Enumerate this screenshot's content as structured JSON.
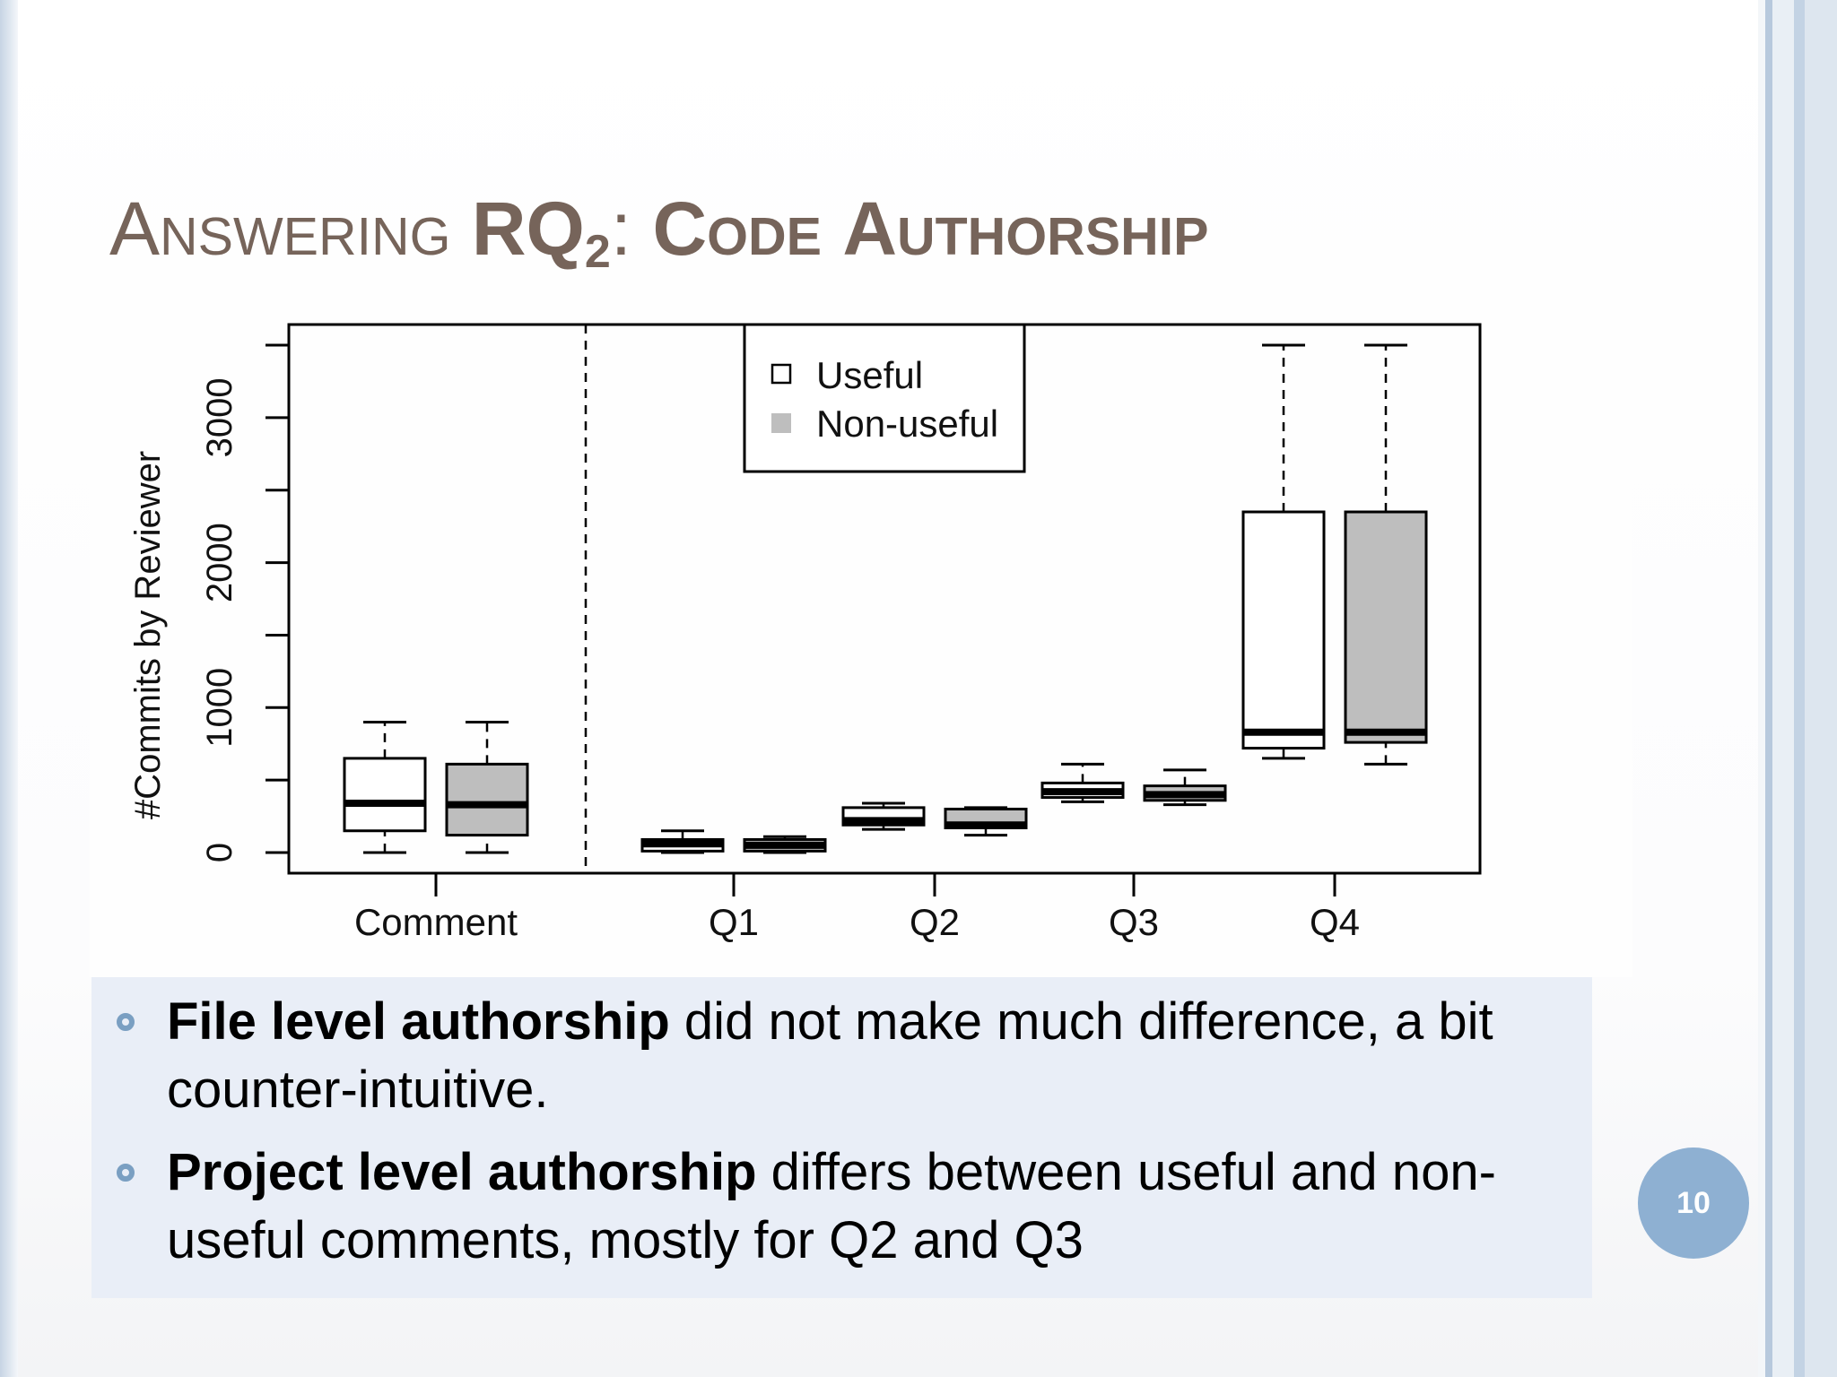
{
  "slide": {
    "title_prefix_first": "A",
    "title_prefix_rest": "nswering",
    "title_rq": "RQ",
    "title_rq_sub": "2",
    "title_colon": ":",
    "title_code_first": "C",
    "title_code_rest": "ode",
    "title_auth_first": "A",
    "title_auth_rest": "uthorship",
    "page_number": "10"
  },
  "bullets": [
    {
      "bold": "File level authorship",
      "rest": " did not make much difference, a bit counter-intuitive."
    },
    {
      "bold": "Project level authorship",
      "rest": " differs between useful and non-useful comments, mostly for Q2 and Q3"
    }
  ],
  "colors": {
    "title": "#76645a",
    "useful_fill": "#ffffff",
    "non_useful_fill": "#bebebe",
    "bullet_marker": "#7a9fc2",
    "panel": "#e9eef7",
    "page_badge": "#8eb0d2"
  },
  "chart_data": {
    "type": "box",
    "ylabel": "#Commits by Reviewer",
    "xlabel": "",
    "ylim": [
      -150,
      3650
    ],
    "yticks": [
      0,
      1000,
      2000,
      3000
    ],
    "ytick_labels": [
      "0",
      "1000",
      "2000",
      "3000"
    ],
    "ytick_minor": [
      500,
      1500,
      2500,
      3500
    ],
    "categories": [
      "Comment",
      "Q1",
      "Q2",
      "Q3",
      "Q4"
    ],
    "separator_after_category": "Comment",
    "legend": {
      "position": "top-center",
      "entries": [
        "Useful",
        "Non-useful"
      ]
    },
    "series": [
      {
        "name": "Useful",
        "color": "#ffffff",
        "boxes": [
          {
            "whisker_low": 0,
            "q1": 150,
            "median": 340,
            "q3": 650,
            "whisker_high": 900
          },
          {
            "whisker_low": 0,
            "q1": 10,
            "median": 60,
            "q3": 90,
            "whisker_high": 150
          },
          {
            "whisker_low": 160,
            "q1": 190,
            "median": 220,
            "q3": 310,
            "whisker_high": 340
          },
          {
            "whisker_low": 350,
            "q1": 380,
            "median": 420,
            "q3": 480,
            "whisker_high": 610
          },
          {
            "whisker_low": 650,
            "q1": 720,
            "median": 830,
            "q3": 2350,
            "whisker_high": 3500
          }
        ]
      },
      {
        "name": "Non-useful",
        "color": "#bebebe",
        "boxes": [
          {
            "whisker_low": 0,
            "q1": 120,
            "median": 330,
            "q3": 610,
            "whisker_high": 900
          },
          {
            "whisker_low": 0,
            "q1": 10,
            "median": 50,
            "q3": 90,
            "whisker_high": 110
          },
          {
            "whisker_low": 120,
            "q1": 170,
            "median": 190,
            "q3": 300,
            "whisker_high": 310
          },
          {
            "whisker_low": 330,
            "q1": 360,
            "median": 400,
            "q3": 460,
            "whisker_high": 570
          },
          {
            "whisker_low": 610,
            "q1": 760,
            "median": 830,
            "q3": 2350,
            "whisker_high": 3500
          }
        ]
      }
    ]
  }
}
